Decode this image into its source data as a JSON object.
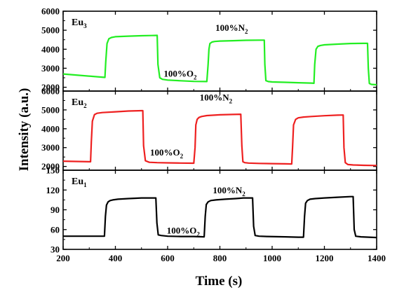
{
  "chart_data": {
    "type": "line",
    "xlabel": "Time (s)",
    "ylabel": "Intensity (a.u.)",
    "xlim": [
      200,
      1400
    ],
    "x_ticks": [
      "200",
      "400",
      "600",
      "800",
      "1000",
      "1200",
      "1400"
    ],
    "panels": [
      {
        "id": "eu3",
        "label_main": "Eu",
        "label_sub": "3",
        "color": "#22ee22",
        "ylim": [
          1800,
          6000
        ],
        "y_ticks": [
          "2000",
          "3000",
          "4000",
          "5000",
          "6000"
        ],
        "annotations": [
          {
            "main": "100%O",
            "sub": "2",
            "x": 648,
            "y": 2550
          },
          {
            "main": "100%N",
            "sub": "2",
            "x": 845,
            "y": 4970
          }
        ],
        "x": [
          200,
          360,
          363,
          368,
          375,
          385,
          400,
          450,
          500,
          540,
          560,
          563,
          570,
          580,
          600,
          650,
          700,
          750,
          755,
          758,
          762,
          770,
          780,
          800,
          850,
          900,
          950,
          970,
          972,
          976,
          985,
          1000,
          1050,
          1100,
          1150,
          1160,
          1163,
          1168,
          1175,
          1185,
          1200,
          1250,
          1300,
          1350,
          1365,
          1368,
          1372,
          1380,
          1400
        ],
        "y": [
          2700,
          2520,
          3300,
          4300,
          4550,
          4620,
          4660,
          4690,
          4710,
          4720,
          4730,
          3200,
          2500,
          2420,
          2380,
          2340,
          2310,
          2300,
          3200,
          4000,
          4300,
          4380,
          4410,
          4430,
          4450,
          4470,
          4480,
          4480,
          3200,
          2350,
          2300,
          2280,
          2260,
          2240,
          2220,
          2210,
          3200,
          4000,
          4150,
          4200,
          4230,
          4270,
          4300,
          4310,
          4310,
          3000,
          2200,
          2150,
          2130
        ]
      },
      {
        "id": "eu2",
        "label_main": "Eu",
        "label_sub": "2",
        "color": "#ee2020",
        "ylim": [
          1800,
          6000
        ],
        "y_ticks": [
          "2000",
          "3000",
          "4000",
          "5000",
          "6000"
        ],
        "annotations": [
          {
            "main": "100%O",
            "sub": "2",
            "x": 596,
            "y": 2580
          },
          {
            "main": "100%N",
            "sub": "2",
            "x": 785,
            "y": 5500
          }
        ],
        "x": [
          200,
          305,
          308,
          312,
          320,
          330,
          350,
          400,
          450,
          500,
          505,
          508,
          515,
          530,
          560,
          600,
          650,
          700,
          705,
          708,
          713,
          720,
          730,
          750,
          800,
          850,
          880,
          884,
          888,
          895,
          910,
          950,
          1000,
          1050,
          1075,
          1078,
          1082,
          1090,
          1100,
          1120,
          1150,
          1200,
          1250,
          1272,
          1275,
          1280,
          1290,
          1310,
          1350,
          1400
        ],
        "y": [
          2280,
          2250,
          3300,
          4400,
          4750,
          4820,
          4860,
          4900,
          4940,
          4960,
          4960,
          3100,
          2300,
          2220,
          2200,
          2190,
          2180,
          2170,
          3000,
          4200,
          4500,
          4600,
          4650,
          4700,
          4740,
          4760,
          4770,
          3100,
          2250,
          2200,
          2180,
          2160,
          2150,
          2140,
          2130,
          3000,
          4200,
          4500,
          4580,
          4620,
          4650,
          4690,
          4720,
          4730,
          3000,
          2200,
          2100,
          2080,
          2060,
          2050
        ]
      },
      {
        "id": "eu1",
        "label_main": "Eu",
        "label_sub": "1",
        "color": "#000000",
        "ylim": [
          30,
          150
        ],
        "y_ticks": [
          "30",
          "60",
          "90",
          "120",
          "150"
        ],
        "annotations": [
          {
            "main": "100%O",
            "sub": "2",
            "x": 660,
            "y": 54
          },
          {
            "main": "100%N",
            "sub": "2",
            "x": 835,
            "y": 115
          }
        ],
        "x": [
          200,
          300,
          358,
          362,
          366,
          372,
          380,
          390,
          410,
          450,
          500,
          540,
          555,
          559,
          564,
          575,
          600,
          650,
          700,
          740,
          744,
          748,
          755,
          765,
          785,
          820,
          860,
          890,
          925,
          929,
          935,
          950,
          980,
          1050,
          1100,
          1120,
          1124,
          1128,
          1135,
          1145,
          1165,
          1200,
          1250,
          1300,
          1310,
          1314,
          1320,
          1340,
          1400
        ],
        "y": [
          50,
          50,
          50,
          80,
          97,
          102,
          104,
          105,
          106,
          107,
          108,
          108,
          108,
          70,
          52,
          51,
          50,
          49.5,
          49.5,
          49,
          80,
          98,
          102,
          104,
          105,
          106,
          107,
          108,
          108,
          65,
          51,
          50,
          49.5,
          49,
          48.5,
          48.5,
          80,
          100,
          104,
          106,
          107,
          108,
          109,
          110,
          110,
          60,
          50,
          49,
          48
        ]
      }
    ]
  }
}
